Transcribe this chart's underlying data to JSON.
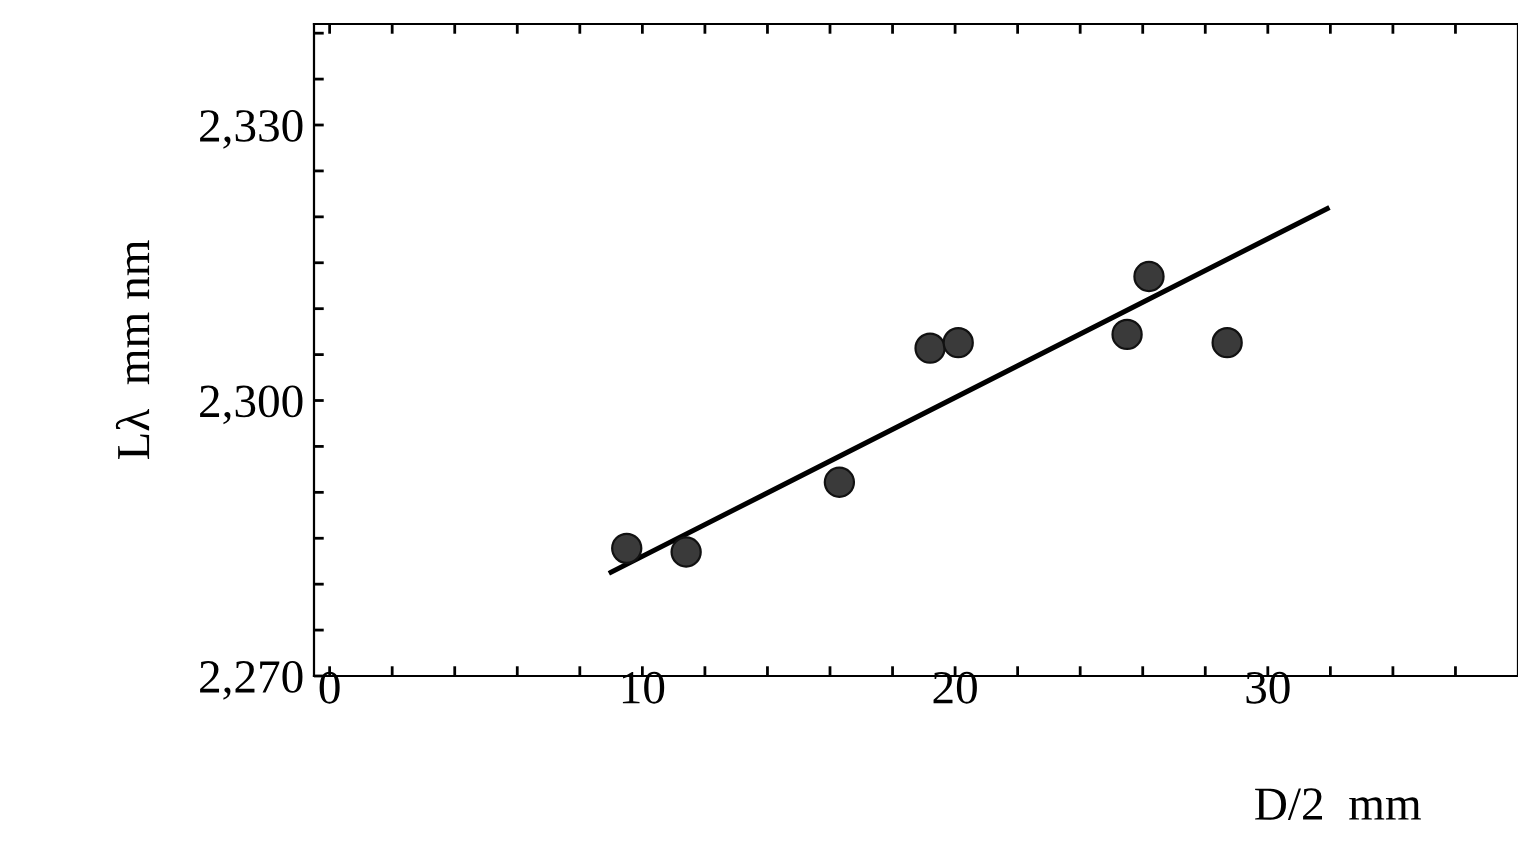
{
  "chart_data": {
    "type": "scatter",
    "xlabel": "D/2  mm",
    "ylabel": "Lλ  mm nm",
    "xlim": [
      -0.5,
      38
    ],
    "ylim": [
      2270,
      2341
    ],
    "xticks": [
      0,
      {
        "value": 2,
        "label": null
      },
      {
        "value": 4,
        "label": null
      },
      {
        "value": 6,
        "label": null
      },
      {
        "value": 8,
        "label": null
      },
      10,
      {
        "value": 12,
        "label": null
      },
      {
        "value": 14,
        "label": null
      },
      {
        "value": 16,
        "label": null
      },
      {
        "value": 18,
        "label": null
      },
      20,
      {
        "value": 22,
        "label": null
      },
      {
        "value": 24,
        "label": null
      },
      {
        "value": 26,
        "label": null
      },
      {
        "value": 28,
        "label": null
      },
      30,
      {
        "value": 32,
        "label": null
      },
      {
        "value": 34,
        "label": null
      },
      {
        "value": 36,
        "label": null
      }
    ],
    "yticks": [
      {
        "value": 2270,
        "label": "2,270"
      },
      {
        "value": 2275,
        "label": null
      },
      {
        "value": 2280,
        "label": null
      },
      {
        "value": 2285,
        "label": null
      },
      {
        "value": 2290,
        "label": null
      },
      {
        "value": 2295,
        "label": null
      },
      {
        "value": 2300,
        "label": "2,300"
      },
      {
        "value": 2305,
        "label": null
      },
      {
        "value": 2310,
        "label": null
      },
      {
        "value": 2315,
        "label": null
      },
      {
        "value": 2320,
        "label": null
      },
      {
        "value": 2325,
        "label": null
      },
      {
        "value": 2330,
        "label": "2,330"
      },
      {
        "value": 2335,
        "label": null
      },
      {
        "value": 2340,
        "label": null
      }
    ],
    "grid": false,
    "legend": false,
    "marker": "circle",
    "series": [
      {
        "color": "#3a3a3a",
        "x": [
          9.5,
          11.4,
          16.3,
          19.2,
          20.1,
          25.5,
          26.2,
          28.7
        ],
        "values": [
          2283.9,
          2283.5,
          2291.1,
          2305.7,
          2306.3,
          2307.2,
          2313.5,
          2306.3
        ]
      },
      {
        "type": "line",
        "color": "#000000",
        "x": [
          9.0,
          31.9
        ],
        "values": [
          2281.3,
          2320.9
        ],
        "marker": "none",
        "line_style": "solid"
      }
    ]
  }
}
